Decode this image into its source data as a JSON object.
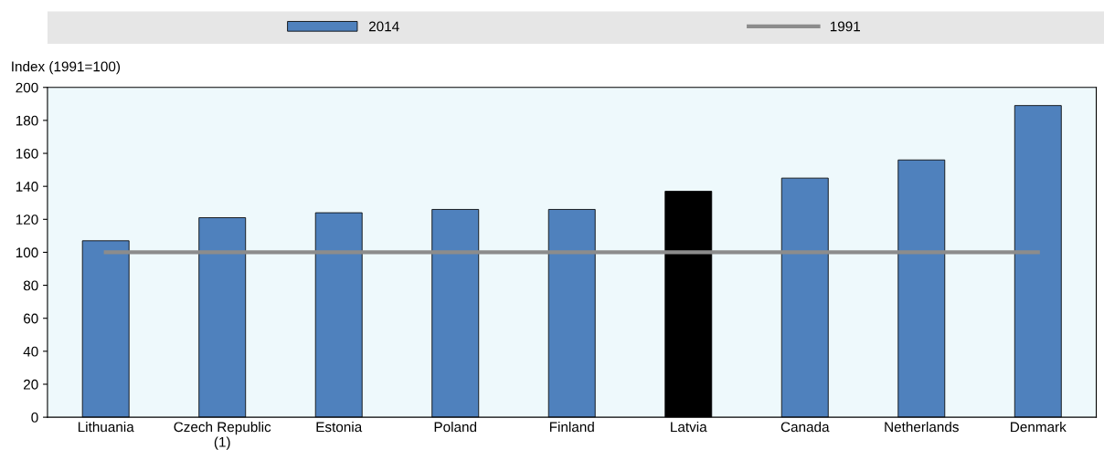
{
  "chart_data": {
    "type": "bar",
    "ylabel": "Index (1991=100)",
    "categories": [
      "Lithuania",
      "Czech Republic\n(1)",
      "Estonia",
      "Poland",
      "Finland",
      "Latvia",
      "Canada",
      "Netherlands",
      "Denmark"
    ],
    "series": [
      {
        "name": "2014",
        "color": "#4f81bd",
        "colors": [
          "#4f81bd",
          "#4f81bd",
          "#4f81bd",
          "#4f81bd",
          "#4f81bd",
          "#000000",
          "#4f81bd",
          "#4f81bd",
          "#4f81bd"
        ],
        "values": [
          107,
          121,
          124,
          126,
          126,
          137,
          145,
          156,
          189
        ]
      },
      {
        "name": "1991",
        "type": "line",
        "color": "#8c8c8c",
        "values": [
          100,
          100,
          100,
          100,
          100,
          100,
          100,
          100,
          100
        ]
      }
    ],
    "ylim": [
      0,
      200
    ],
    "yticks": [
      0,
      20,
      40,
      60,
      80,
      100,
      120,
      140,
      160,
      180,
      200
    ],
    "grid": false,
    "legend": "top",
    "marker": "none",
    "line_style": "solid"
  }
}
